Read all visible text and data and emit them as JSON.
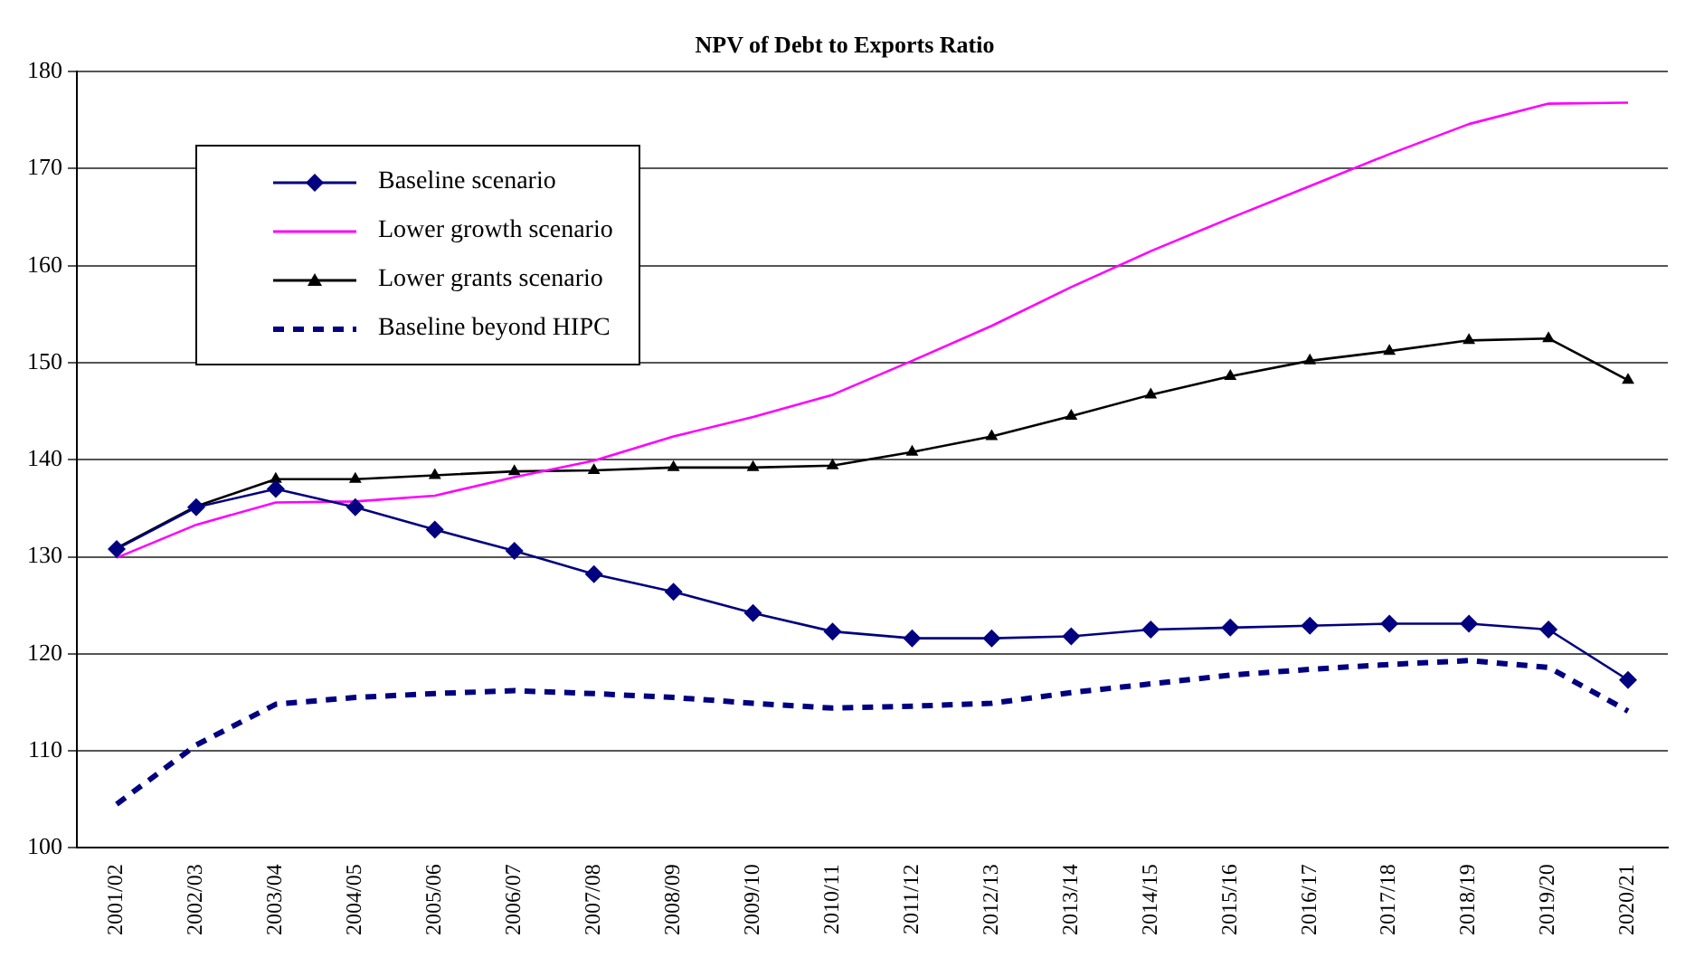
{
  "chart_data": {
    "type": "line",
    "title": "NPV of Debt to Exports Ratio",
    "categories": [
      "2001/02",
      "2002/03",
      "2003/04",
      "2004/05",
      "2005/06",
      "2006/07",
      "2007/08",
      "2008/09",
      "2009/10",
      "2010/11",
      "2011/12",
      "2012/13",
      "2013/14",
      "2014/15",
      "2015/16",
      "2016/17",
      "2017/18",
      "2018/19",
      "2019/20",
      "2020/21"
    ],
    "series": [
      {
        "name": "Baseline scenario",
        "color": "#000080",
        "marker": "diamond",
        "line_style": "solid",
        "values": [
          130.8,
          135.1,
          137.0,
          135.1,
          132.8,
          130.6,
          128.2,
          126.4,
          124.2,
          122.3,
          121.6,
          121.6,
          121.8,
          122.5,
          122.7,
          122.9,
          123.1,
          123.1,
          122.5,
          117.3
        ]
      },
      {
        "name": "Lower growth scenario",
        "color": "#ff00ff",
        "marker": "none",
        "line_style": "solid",
        "values": [
          129.9,
          133.3,
          135.6,
          135.7,
          136.3,
          138.2,
          139.9,
          142.4,
          144.4,
          146.7,
          150.2,
          153.8,
          157.8,
          161.5,
          164.9,
          168.2,
          171.5,
          174.6,
          176.7,
          176.8
        ]
      },
      {
        "name": "Lower grants scenario",
        "color": "#000000",
        "marker": "triangle",
        "line_style": "solid",
        "values": [
          130.9,
          135.2,
          138.0,
          138.0,
          138.4,
          138.8,
          138.9,
          139.2,
          139.2,
          139.4,
          140.8,
          142.4,
          144.5,
          146.7,
          148.6,
          150.2,
          151.2,
          152.3,
          152.5,
          148.2
        ]
      },
      {
        "name": "Baseline beyond HIPC",
        "color": "#000080",
        "marker": "none",
        "line_style": "dashed",
        "values": [
          104.5,
          110.6,
          114.8,
          115.5,
          115.9,
          116.2,
          115.9,
          115.5,
          114.9,
          114.4,
          114.6,
          114.9,
          116.0,
          116.9,
          117.8,
          118.4,
          118.9,
          119.3,
          118.6,
          114.1
        ]
      }
    ],
    "ylim": [
      100,
      180
    ],
    "yticks": [
      100,
      110,
      120,
      130,
      140,
      150,
      160,
      170,
      180
    ],
    "grid": "y",
    "legend": "top left"
  }
}
